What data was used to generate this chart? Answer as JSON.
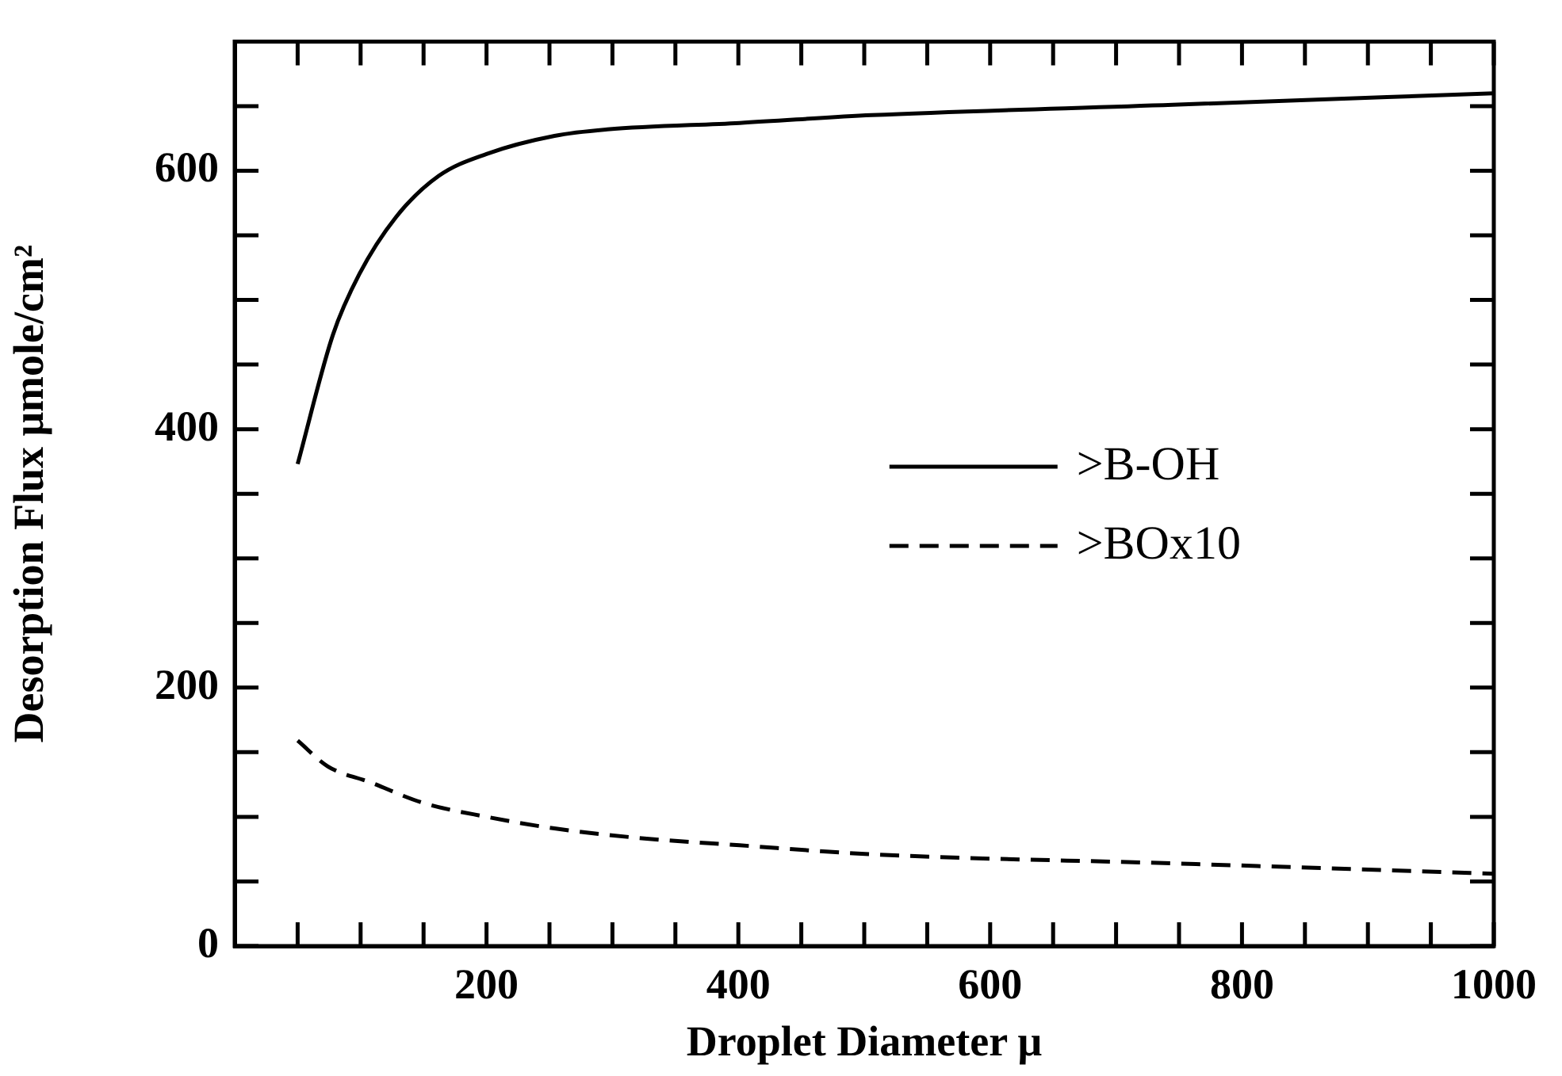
{
  "chart_data": {
    "type": "line",
    "xlabel": "Droplet Diameter μ",
    "ylabel": "Desorption Flux μmole/cm²",
    "xlim": [
      0,
      1000
    ],
    "ylim": [
      0,
      700
    ],
    "xticks": [
      {
        "value": 50,
        "label": null
      },
      {
        "value": 100,
        "label": null
      },
      {
        "value": 150,
        "label": null
      },
      200,
      {
        "value": 250,
        "label": null
      },
      {
        "value": 300,
        "label": null
      },
      {
        "value": 350,
        "label": null
      },
      400,
      {
        "value": 450,
        "label": null
      },
      {
        "value": 500,
        "label": null
      },
      {
        "value": 550,
        "label": null
      },
      600,
      {
        "value": 650,
        "label": null
      },
      {
        "value": 700,
        "label": null
      },
      {
        "value": 750,
        "label": null
      },
      800,
      {
        "value": 850,
        "label": null
      },
      {
        "value": 900,
        "label": null
      },
      {
        "value": 950,
        "label": null
      },
      1000
    ],
    "yticks": [
      0,
      {
        "value": 50,
        "label": null
      },
      {
        "value": 100,
        "label": null
      },
      {
        "value": 150,
        "label": null
      },
      200,
      {
        "value": 250,
        "label": null
      },
      {
        "value": 300,
        "label": null
      },
      {
        "value": 350,
        "label": null
      },
      400,
      {
        "value": 450,
        "label": null
      },
      {
        "value": 500,
        "label": null
      },
      {
        "value": 550,
        "label": null
      },
      600,
      {
        "value": 650,
        "label": null
      }
    ],
    "legend": "right",
    "grid": false,
    "series": [
      {
        "name": ">B-OH",
        "color": "#000000",
        "line_style": "solid",
        "x": [
          50,
          78,
          99,
          128,
          162,
          200,
          254,
          296,
          401,
          506,
          745,
          1000
        ],
        "values": [
          373,
          473,
          520,
          564,
          596,
          613,
          627,
          632,
          637,
          643,
          651,
          660
        ]
      },
      {
        "name": ">BOx10",
        "color": "#000000",
        "line_style": "dashed",
        "x": [
          50,
          74,
          107,
          149,
          200,
          254,
          317,
          401,
          506,
          745,
          1000
        ],
        "values": [
          159,
          139,
          127,
          111,
          100,
          91,
          84,
          78,
          71,
          64,
          56
        ]
      }
    ]
  }
}
